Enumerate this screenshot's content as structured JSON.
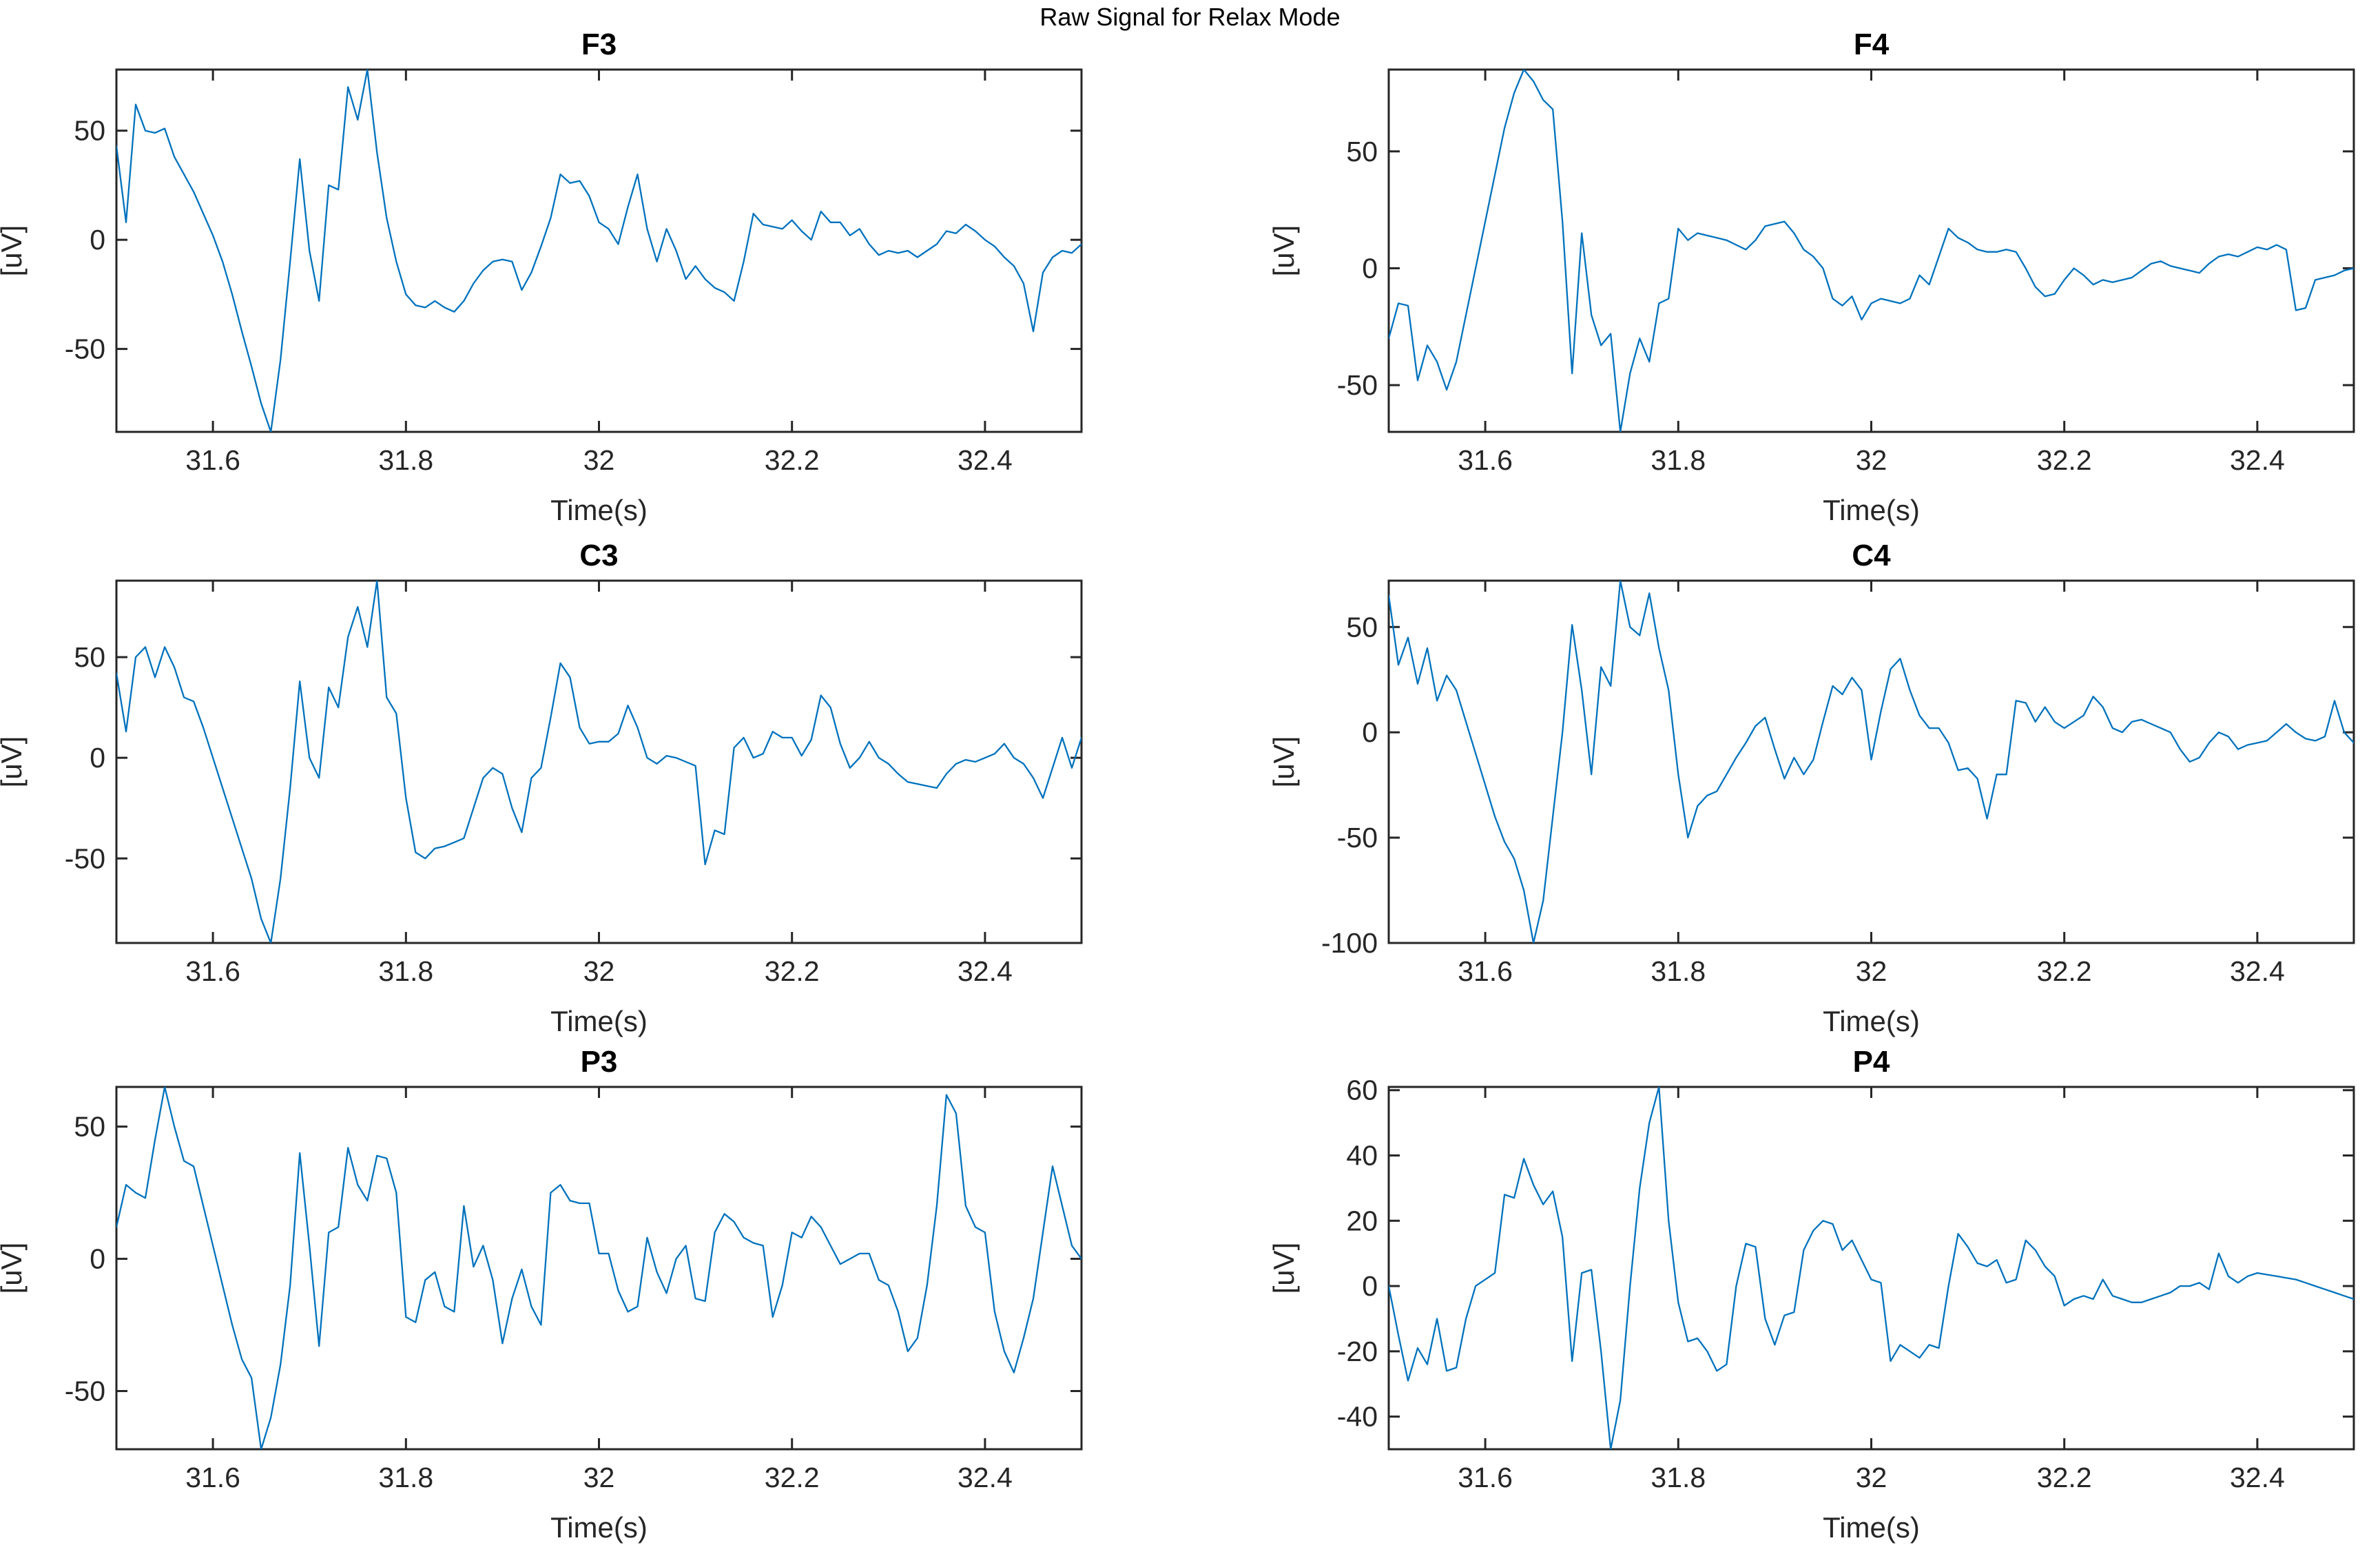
{
  "figure": {
    "title": "Raw Signal for Relax Mode"
  },
  "style": {
    "line_color": "#0072BD",
    "axis_color": "#262626",
    "tick_label_color": "#262626",
    "title_color": "#000000",
    "background": "#ffffff"
  },
  "chart_data": [
    {
      "id": "F3",
      "type": "line",
      "title": "F3",
      "xlabel": "Time(s)",
      "ylabel": "[uV]",
      "x_start": 31.5,
      "x_step": 0.01,
      "xlim": [
        31.5,
        32.5
      ],
      "ylim": [
        -88,
        78
      ],
      "xtick_values": [
        31.6,
        31.8,
        32,
        32.2,
        32.4
      ],
      "xtick_labels": [
        "31.6",
        "31.8",
        "32",
        "32.2",
        "32.4"
      ],
      "ytick_values": [
        -50,
        0,
        50
      ],
      "ytick_labels": [
        "-50",
        "0",
        "50"
      ],
      "grid": false,
      "values": [
        43,
        8,
        62,
        50,
        49,
        51,
        38,
        30,
        22,
        12,
        2,
        -10,
        -25,
        -42,
        -58,
        -75,
        -88,
        -55,
        -10,
        37,
        -5,
        -28,
        25,
        23,
        70,
        55,
        78,
        40,
        10,
        -10,
        -25,
        -30,
        -31,
        -28,
        -31,
        -33,
        -28,
        -20,
        -14,
        -10,
        -9,
        -10,
        -23,
        -15,
        -3,
        10,
        30,
        26,
        27,
        20,
        8,
        5,
        -2,
        15,
        30,
        5,
        -10,
        5,
        -5,
        -18,
        -12,
        -18,
        -22,
        -24,
        -28,
        -10,
        12,
        7,
        6,
        5,
        9,
        4,
        0,
        13,
        8,
        8,
        2,
        5,
        -2,
        -7,
        -5,
        -6,
        -5,
        -8,
        -5,
        -2,
        4,
        3,
        7,
        4,
        0,
        -3,
        -8,
        -12,
        -20,
        -42,
        -15,
        -8,
        -5,
        -6,
        -2
      ]
    },
    {
      "id": "F4",
      "type": "line",
      "title": "F4",
      "xlabel": "Time(s)",
      "ylabel": "[uV]",
      "x_start": 31.5,
      "x_step": 0.01,
      "xlim": [
        31.5,
        32.5
      ],
      "ylim": [
        -70,
        85
      ],
      "xtick_values": [
        31.6,
        31.8,
        32,
        32.2,
        32.4
      ],
      "xtick_labels": [
        "31.6",
        "31.8",
        "32",
        "32.2",
        "32.4"
      ],
      "ytick_values": [
        -50,
        0,
        50
      ],
      "ytick_labels": [
        "-50",
        "0",
        "50"
      ],
      "grid": false,
      "values": [
        -30,
        -15,
        -16,
        -48,
        -33,
        -40,
        -52,
        -40,
        -20,
        0,
        20,
        40,
        60,
        75,
        85,
        80,
        72,
        68,
        20,
        -45,
        15,
        -20,
        -33,
        -28,
        -70,
        -45,
        -30,
        -40,
        -15,
        -13,
        17,
        12,
        15,
        14,
        13,
        12,
        10,
        8,
        12,
        18,
        19,
        20,
        15,
        8,
        5,
        0,
        -13,
        -16,
        -12,
        -22,
        -15,
        -13,
        -14,
        -15,
        -13,
        -3,
        -7,
        5,
        17,
        13,
        11,
        8,
        7,
        7,
        8,
        7,
        0,
        -8,
        -12,
        -11,
        -5,
        0,
        -3,
        -7,
        -5,
        -6,
        -5,
        -4,
        -1,
        2,
        3,
        1,
        0,
        -1,
        -2,
        2,
        5,
        6,
        5,
        7,
        9,
        8,
        10,
        8,
        -18,
        -17,
        -5,
        -4,
        -3,
        -1,
        0
      ]
    },
    {
      "id": "C3",
      "type": "line",
      "title": "C3",
      "xlabel": "Time(s)",
      "ylabel": "[uV]",
      "x_start": 31.5,
      "x_step": 0.01,
      "xlim": [
        31.5,
        32.5
      ],
      "ylim": [
        -92,
        88
      ],
      "xtick_values": [
        31.6,
        31.8,
        32,
        32.2,
        32.4
      ],
      "xtick_labels": [
        "31.6",
        "31.8",
        "32",
        "32.2",
        "32.4"
      ],
      "ytick_values": [
        -50,
        0,
        50
      ],
      "ytick_labels": [
        "-50",
        "0",
        "50"
      ],
      "grid": false,
      "values": [
        42,
        13,
        50,
        55,
        40,
        55,
        45,
        30,
        28,
        15,
        0,
        -15,
        -30,
        -45,
        -60,
        -80,
        -92,
        -60,
        -15,
        38,
        0,
        -10,
        35,
        25,
        60,
        75,
        55,
        88,
        30,
        22,
        -20,
        -47,
        -50,
        -45,
        -44,
        -42,
        -40,
        -25,
        -10,
        -5,
        -8,
        -25,
        -37,
        -10,
        -5,
        20,
        47,
        40,
        15,
        7,
        8,
        8,
        12,
        26,
        15,
        0,
        -3,
        1,
        0,
        -2,
        -4,
        -53,
        -36,
        -38,
        5,
        10,
        0,
        2,
        13,
        10,
        10,
        1,
        9,
        31,
        25,
        7,
        -5,
        0,
        8,
        0,
        -3,
        -8,
        -12,
        -13,
        -14,
        -15,
        -8,
        -3,
        -1,
        -2,
        0,
        2,
        7,
        0,
        -3,
        -10,
        -20,
        -5,
        10,
        -5,
        10
      ]
    },
    {
      "id": "C4",
      "type": "line",
      "title": "C4",
      "xlabel": "Time(s)",
      "ylabel": "[uV]",
      "x_start": 31.5,
      "x_step": 0.01,
      "xlim": [
        31.5,
        32.5
      ],
      "ylim": [
        -100,
        72
      ],
      "xtick_values": [
        31.6,
        31.8,
        32,
        32.2,
        32.4
      ],
      "xtick_labels": [
        "31.6",
        "31.8",
        "32",
        "32.2",
        "32.4"
      ],
      "ytick_values": [
        -100,
        -50,
        0,
        50
      ],
      "ytick_labels": [
        "-100",
        "-50",
        "0",
        "50"
      ],
      "grid": false,
      "values": [
        65,
        32,
        45,
        23,
        40,
        15,
        27,
        20,
        5,
        -10,
        -25,
        -40,
        -52,
        -60,
        -75,
        -100,
        -80,
        -40,
        0,
        51,
        20,
        -20,
        31,
        22,
        72,
        50,
        46,
        66,
        40,
        20,
        -20,
        -50,
        -35,
        -30,
        -28,
        -20,
        -12,
        -5,
        3,
        7,
        -8,
        -22,
        -12,
        -20,
        -13,
        5,
        22,
        18,
        26,
        20,
        -13,
        10,
        30,
        35,
        20,
        8,
        2,
        2,
        -5,
        -18,
        -17,
        -22,
        -41,
        -20,
        -20,
        15,
        14,
        5,
        12,
        5,
        2,
        5,
        8,
        17,
        12,
        2,
        0,
        5,
        6,
        4,
        2,
        0,
        -8,
        -14,
        -12,
        -5,
        0,
        -2,
        -8,
        -6,
        -5,
        -4,
        0,
        4,
        0,
        -3,
        -4,
        -2,
        15,
        0,
        -5
      ]
    },
    {
      "id": "P3",
      "type": "line",
      "title": "P3",
      "xlabel": "Time(s)",
      "ylabel": "[uV]",
      "x_start": 31.5,
      "x_step": 0.01,
      "xlim": [
        31.5,
        32.5
      ],
      "ylim": [
        -72,
        65
      ],
      "xtick_values": [
        31.6,
        31.8,
        32,
        32.2,
        32.4
      ],
      "xtick_labels": [
        "31.6",
        "31.8",
        "32",
        "32.2",
        "32.4"
      ],
      "ytick_values": [
        -50,
        0,
        50
      ],
      "ytick_labels": [
        "-50",
        "0",
        "50"
      ],
      "grid": false,
      "values": [
        12,
        28,
        25,
        23,
        45,
        65,
        50,
        37,
        35,
        20,
        5,
        -10,
        -25,
        -38,
        -45,
        -72,
        -60,
        -40,
        -10,
        40,
        5,
        -33,
        10,
        12,
        42,
        28,
        22,
        39,
        38,
        25,
        -22,
        -24,
        -8,
        -5,
        -18,
        -20,
        20,
        -3,
        5,
        -8,
        -32,
        -15,
        -4,
        -18,
        -25,
        25,
        28,
        22,
        21,
        21,
        2,
        2,
        -12,
        -20,
        -18,
        8,
        -5,
        -13,
        0,
        5,
        -15,
        -16,
        10,
        17,
        14,
        8,
        6,
        5,
        -22,
        -10,
        10,
        8,
        16,
        12,
        5,
        -2,
        0,
        2,
        2,
        -8,
        -10,
        -20,
        -35,
        -30,
        -10,
        20,
        62,
        55,
        20,
        12,
        10,
        -20,
        -35,
        -43,
        -30,
        -15,
        10,
        35,
        20,
        5,
        0
      ]
    },
    {
      "id": "P4",
      "type": "line",
      "title": "P4",
      "xlabel": "Time(s)",
      "ylabel": "[uV]",
      "x_start": 31.5,
      "x_step": 0.01,
      "xlim": [
        31.5,
        32.5
      ],
      "ylim": [
        -50,
        61
      ],
      "xtick_values": [
        31.6,
        31.8,
        32,
        32.2,
        32.4
      ],
      "xtick_labels": [
        "31.6",
        "31.8",
        "32",
        "32.2",
        "32.4"
      ],
      "ytick_values": [
        -40,
        -20,
        0,
        20,
        40,
        60
      ],
      "ytick_labels": [
        "-40",
        "-20",
        "0",
        "20",
        "40",
        "60"
      ],
      "grid": false,
      "values": [
        0,
        -15,
        -29,
        -19,
        -24,
        -10,
        -26,
        -25,
        -10,
        0,
        2,
        4,
        28,
        27,
        39,
        31,
        25,
        29,
        15,
        -23,
        4,
        5,
        -20,
        -50,
        -35,
        0,
        30,
        50,
        61,
        20,
        -5,
        -17,
        -16,
        -20,
        -26,
        -24,
        0,
        13,
        12,
        -10,
        -18,
        -9,
        -8,
        11,
        17,
        20,
        19,
        11,
        14,
        8,
        2,
        1,
        -23,
        -18,
        -20,
        -22,
        -18,
        -19,
        0,
        16,
        12,
        7,
        6,
        8,
        1,
        2,
        14,
        11,
        6,
        3,
        -6,
        -4,
        -3,
        -4,
        2,
        -3,
        -4,
        -5,
        -5,
        -4,
        -3,
        -2,
        0,
        0,
        1,
        -1,
        10,
        3,
        1,
        3,
        4,
        3.5,
        3,
        2.5,
        2,
        1,
        0,
        -1,
        -2,
        -3,
        -4
      ]
    }
  ]
}
